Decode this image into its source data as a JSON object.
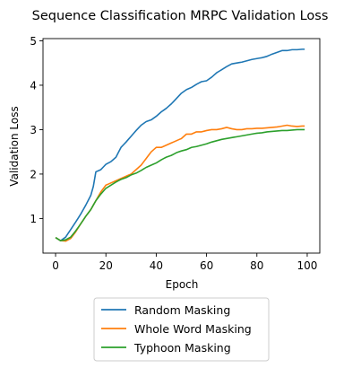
{
  "chart_data": {
    "type": "line",
    "title": "Sequence Classification MRPC Validation Loss",
    "xlabel": "Epoch",
    "ylabel": "Validation Loss",
    "xlim": [
      -5,
      105
    ],
    "ylim": [
      0.22,
      5.05
    ],
    "xticks": [
      0,
      20,
      40,
      60,
      80,
      100
    ],
    "yticks": [
      1,
      2,
      3,
      4,
      5
    ],
    "grid": false,
    "legend_position": "below",
    "colors": {
      "Random Masking": "#1f77b4",
      "Whole Word Masking": "#ff7f0e",
      "Typhoon Masking": "#2ca02c"
    },
    "series": [
      {
        "name": "Random Masking",
        "color": "#1f77b4",
        "anchors": [
          [
            0,
            0.57
          ],
          [
            2,
            0.5
          ],
          [
            4,
            0.58
          ],
          [
            6,
            0.75
          ],
          [
            8,
            0.92
          ],
          [
            10,
            1.1
          ],
          [
            12,
            1.3
          ],
          [
            14,
            1.52
          ],
          [
            15,
            1.72
          ],
          [
            16,
            2.05
          ],
          [
            18,
            2.1
          ],
          [
            20,
            2.22
          ],
          [
            22,
            2.28
          ],
          [
            24,
            2.38
          ],
          [
            26,
            2.6
          ],
          [
            28,
            2.72
          ],
          [
            30,
            2.85
          ],
          [
            32,
            2.98
          ],
          [
            34,
            3.1
          ],
          [
            36,
            3.18
          ],
          [
            38,
            3.22
          ],
          [
            40,
            3.3
          ],
          [
            42,
            3.4
          ],
          [
            44,
            3.48
          ],
          [
            46,
            3.58
          ],
          [
            48,
            3.7
          ],
          [
            50,
            3.82
          ],
          [
            52,
            3.9
          ],
          [
            54,
            3.95
          ],
          [
            56,
            4.02
          ],
          [
            58,
            4.08
          ],
          [
            60,
            4.1
          ],
          [
            62,
            4.18
          ],
          [
            64,
            4.28
          ],
          [
            66,
            4.35
          ],
          [
            68,
            4.42
          ],
          [
            70,
            4.48
          ],
          [
            72,
            4.5
          ],
          [
            74,
            4.52
          ],
          [
            76,
            4.55
          ],
          [
            78,
            4.58
          ],
          [
            80,
            4.6
          ],
          [
            82,
            4.62
          ],
          [
            84,
            4.65
          ],
          [
            86,
            4.7
          ],
          [
            88,
            4.74
          ],
          [
            90,
            4.78
          ],
          [
            92,
            4.78
          ],
          [
            94,
            4.8
          ],
          [
            96,
            4.8
          ],
          [
            98,
            4.81
          ],
          [
            99,
            4.81
          ]
        ]
      },
      {
        "name": "Whole Word Masking",
        "color": "#ff7f0e",
        "anchors": [
          [
            0,
            0.57
          ],
          [
            2,
            0.5
          ],
          [
            4,
            0.49
          ],
          [
            6,
            0.55
          ],
          [
            8,
            0.7
          ],
          [
            10,
            0.88
          ],
          [
            12,
            1.05
          ],
          [
            14,
            1.2
          ],
          [
            16,
            1.4
          ],
          [
            18,
            1.6
          ],
          [
            20,
            1.75
          ],
          [
            22,
            1.8
          ],
          [
            24,
            1.85
          ],
          [
            26,
            1.9
          ],
          [
            28,
            1.95
          ],
          [
            30,
            2.0
          ],
          [
            32,
            2.1
          ],
          [
            34,
            2.2
          ],
          [
            36,
            2.35
          ],
          [
            38,
            2.5
          ],
          [
            40,
            2.6
          ],
          [
            42,
            2.6
          ],
          [
            44,
            2.65
          ],
          [
            46,
            2.7
          ],
          [
            48,
            2.75
          ],
          [
            50,
            2.8
          ],
          [
            52,
            2.9
          ],
          [
            54,
            2.9
          ],
          [
            56,
            2.95
          ],
          [
            58,
            2.95
          ],
          [
            60,
            2.98
          ],
          [
            62,
            3.0
          ],
          [
            64,
            3.0
          ],
          [
            66,
            3.02
          ],
          [
            68,
            3.05
          ],
          [
            70,
            3.02
          ],
          [
            72,
            3.0
          ],
          [
            74,
            3.0
          ],
          [
            76,
            3.02
          ],
          [
            78,
            3.02
          ],
          [
            80,
            3.03
          ],
          [
            82,
            3.03
          ],
          [
            84,
            3.04
          ],
          [
            86,
            3.05
          ],
          [
            88,
            3.06
          ],
          [
            90,
            3.08
          ],
          [
            92,
            3.1
          ],
          [
            94,
            3.08
          ],
          [
            96,
            3.07
          ],
          [
            98,
            3.08
          ],
          [
            99,
            3.08
          ]
        ]
      },
      {
        "name": "Typhoon Masking",
        "color": "#2ca02c",
        "anchors": [
          [
            0,
            0.57
          ],
          [
            2,
            0.5
          ],
          [
            4,
            0.52
          ],
          [
            6,
            0.58
          ],
          [
            8,
            0.72
          ],
          [
            10,
            0.88
          ],
          [
            12,
            1.05
          ],
          [
            14,
            1.2
          ],
          [
            16,
            1.4
          ],
          [
            18,
            1.55
          ],
          [
            20,
            1.68
          ],
          [
            22,
            1.75
          ],
          [
            24,
            1.82
          ],
          [
            26,
            1.88
          ],
          [
            28,
            1.92
          ],
          [
            30,
            1.98
          ],
          [
            32,
            2.02
          ],
          [
            34,
            2.08
          ],
          [
            36,
            2.15
          ],
          [
            38,
            2.2
          ],
          [
            40,
            2.25
          ],
          [
            42,
            2.32
          ],
          [
            44,
            2.38
          ],
          [
            46,
            2.42
          ],
          [
            48,
            2.48
          ],
          [
            50,
            2.52
          ],
          [
            52,
            2.55
          ],
          [
            54,
            2.6
          ],
          [
            56,
            2.62
          ],
          [
            58,
            2.65
          ],
          [
            60,
            2.68
          ],
          [
            62,
            2.72
          ],
          [
            64,
            2.75
          ],
          [
            66,
            2.78
          ],
          [
            68,
            2.8
          ],
          [
            70,
            2.82
          ],
          [
            72,
            2.84
          ],
          [
            74,
            2.86
          ],
          [
            76,
            2.88
          ],
          [
            78,
            2.9
          ],
          [
            80,
            2.92
          ],
          [
            82,
            2.93
          ],
          [
            84,
            2.95
          ],
          [
            86,
            2.96
          ],
          [
            88,
            2.97
          ],
          [
            90,
            2.98
          ],
          [
            92,
            2.98
          ],
          [
            94,
            2.99
          ],
          [
            96,
            3.0
          ],
          [
            98,
            3.0
          ],
          [
            99,
            3.0
          ]
        ]
      }
    ]
  }
}
